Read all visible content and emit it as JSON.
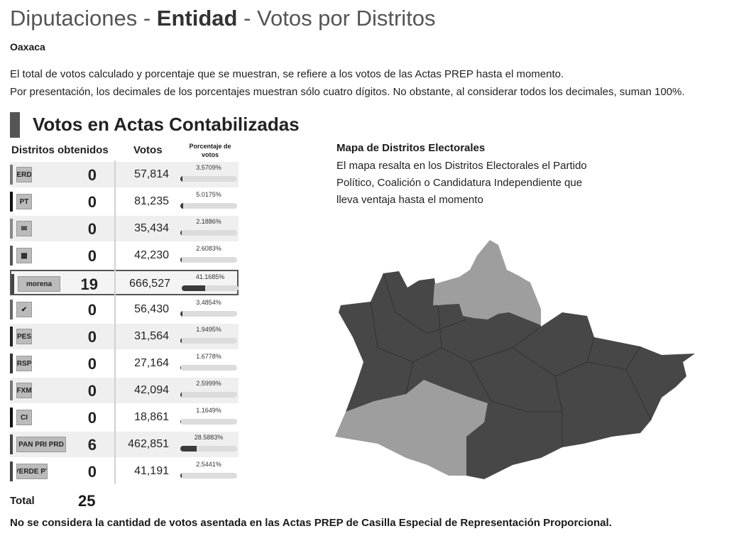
{
  "header": {
    "title_part1": "Diputaciones - ",
    "title_part2": "Entidad",
    "title_part3": " - Votos por Distritos",
    "state": "Oaxaca",
    "note_line1": "El total de votos calculado y porcentaje que se muestran, se refiere a los votos de las Actas PREP hasta el momento.",
    "note_line2": "Por presentación, los decimales de los porcentajes muestran sólo cuatro dígitos. No obstante, al considerar todos los decimales, suman 100%."
  },
  "section": {
    "title": "Votos en Actas Contabilizadas"
  },
  "table": {
    "col_districts": "Distritos obtenidos",
    "col_votes": "Votos",
    "col_pct": "Porcentaje de votos",
    "rows": [
      {
        "logo": "VERDE",
        "districts": "0",
        "votes": "57,814",
        "pct_label": "3.5709%",
        "pct": 3.5709,
        "stripe": "#777"
      },
      {
        "logo": "PT",
        "districts": "0",
        "votes": "81,235",
        "pct_label": "5.0175%",
        "pct": 5.0175,
        "stripe": "#111"
      },
      {
        "logo": "✉",
        "districts": "0",
        "votes": "35,434",
        "pct_label": "2.1886%",
        "pct": 2.1886,
        "stripe": "#888"
      },
      {
        "logo": "▦",
        "districts": "0",
        "votes": "42,230",
        "pct_label": "2.6083%",
        "pct": 2.6083,
        "stripe": "#555"
      },
      {
        "logo": "morena",
        "districts": "19",
        "votes": "666,527",
        "pct_label": "41.1685%",
        "pct": 41.1685,
        "stripe": "#444"
      },
      {
        "logo": "✔",
        "districts": "0",
        "votes": "56,430",
        "pct_label": "3.4854%",
        "pct": 3.4854,
        "stripe": "#666"
      },
      {
        "logo": "PES",
        "districts": "0",
        "votes": "31,564",
        "pct_label": "1.9495%",
        "pct": 1.9495,
        "stripe": "#222"
      },
      {
        "logo": "RSP",
        "districts": "0",
        "votes": "27,164",
        "pct_label": "1.6778%",
        "pct": 1.6778,
        "stripe": "#333"
      },
      {
        "logo": "FXM",
        "districts": "0",
        "votes": "42,094",
        "pct_label": "2.5999%",
        "pct": 2.5999,
        "stripe": "#777"
      },
      {
        "logo": "CI",
        "districts": "0",
        "votes": "18,861",
        "pct_label": "1.1649%",
        "pct": 1.1649,
        "stripe": "#111"
      },
      {
        "logo": "PAN PRI PRD",
        "districts": "6",
        "votes": "462,851",
        "pct_label": "28.5883%",
        "pct": 28.5883,
        "stripe": "#444"
      },
      {
        "logo": "VERDE PT",
        "districts": "0",
        "votes": "41,191",
        "pct_label": "2.5441%",
        "pct": 2.5441,
        "stripe": "#444"
      }
    ],
    "total_label": "Total",
    "total_value": "25"
  },
  "map": {
    "title": "Mapa de Distritos Electorales",
    "description": "El mapa resalta en los Distritos Electorales el Partido Político, Coalición o Candidatura Independiente que lleva ventaja hasta el momento",
    "colors": {
      "morena": "#474747",
      "coalition": "#9e9e9e"
    }
  },
  "footer": {
    "text": "No se considera la cantidad de votos asentada en las Actas PREP de Casilla Especial de Representación Proporcional."
  }
}
